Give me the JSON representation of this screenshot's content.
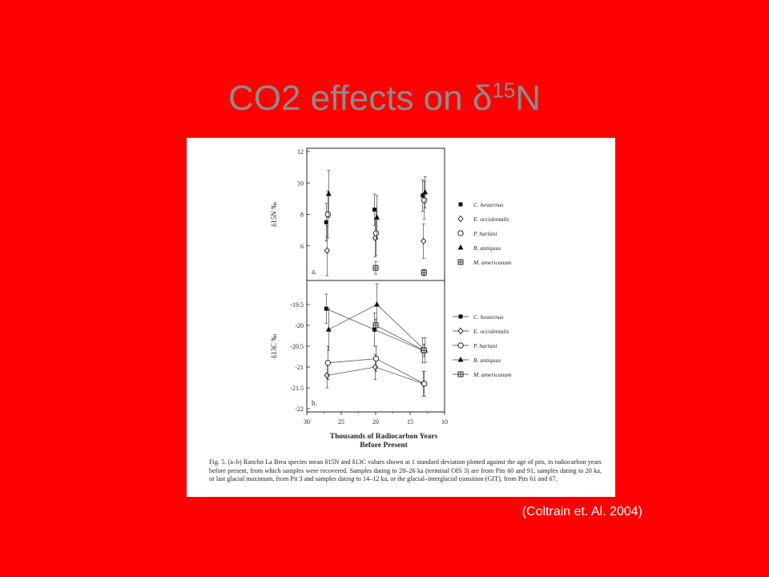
{
  "slide": {
    "title_main": "CO2 effects on δ",
    "title_sup": "15",
    "title_end": "N",
    "citation": "(Coltrain et. Al. 2004)",
    "background": "#ff0000",
    "title_color": "#8c8c8c"
  },
  "figure": {
    "xlabel_line1": "Thousands of Radiocarbon Years",
    "xlabel_line2": "Before Present",
    "caption": "Fig. 5. (a–b) Rancho La Brea species mean δ15N and δ13C values shown at 1 standard deviation plotted against the age of pits, in radiocarbon years before present, from which samples were recovered. Samples dating to 28–26 ka (terminal OIS 3) are from Pits 60 and 91, samples dating to 20 ka, or last glacial maximum, from Pit 3 and samples dating to 14–12 ka, or the glacial–interglacial transition (GIT), from Pits 61 and 67."
  },
  "chart_data": [
    {
      "type": "scatter",
      "panel_label": "a.",
      "ylabel": "δ15N ‰",
      "xlim": [
        30,
        10
      ],
      "ylim": [
        4,
        12
      ],
      "yticks": [
        6,
        8,
        10,
        12
      ],
      "legend_placement": "right",
      "series": [
        {
          "name": "C. hesternus",
          "marker": "square-filled",
          "x": [
            27,
            20,
            13
          ],
          "y": [
            7.5,
            8.3,
            9.2
          ],
          "err": [
            1.2,
            1.0,
            1.0
          ]
        },
        {
          "name": "E. occidentalis",
          "marker": "diamond-open",
          "x": [
            27,
            20,
            13
          ],
          "y": [
            5.7,
            6.5,
            6.3
          ],
          "err": [
            1.6,
            1.2,
            1.1
          ]
        },
        {
          "name": "P. harlani",
          "marker": "circle-open",
          "x": [
            27,
            20,
            13
          ],
          "y": [
            8.0,
            6.8,
            8.9
          ],
          "err": [
            1.5,
            1.4,
            1.2
          ]
        },
        {
          "name": "B. antiquus",
          "marker": "triangle-filled",
          "x": [
            27,
            20,
            13
          ],
          "y": [
            9.3,
            7.8,
            9.4
          ],
          "err": [
            1.5,
            1.4,
            1.0
          ]
        },
        {
          "name": "M. americanum",
          "marker": "square-cross",
          "x": [
            20,
            13
          ],
          "y": [
            4.6,
            4.3
          ],
          "err": [
            0.4,
            0.2
          ]
        }
      ]
    },
    {
      "type": "line",
      "panel_label": "b.",
      "ylabel": "δ13C ‰",
      "xlabel": "Thousands of Radiocarbon Years Before Present",
      "xlim": [
        30,
        10
      ],
      "ylim": [
        -22,
        -19
      ],
      "xticks": [
        30,
        25,
        20,
        15,
        10
      ],
      "yticks": [
        -22,
        -21.5,
        -21,
        -20.5,
        -20,
        -19.5
      ],
      "legend_placement": "right",
      "series": [
        {
          "name": "C. hesternus",
          "marker": "square-filled",
          "x": [
            27,
            20,
            13
          ],
          "y": [
            -19.6,
            -20.1,
            -20.6
          ],
          "err": [
            0.35,
            0.4,
            0.3
          ]
        },
        {
          "name": "E. occidentalis",
          "marker": "diamond-open",
          "x": [
            27,
            20,
            13
          ],
          "y": [
            -21.2,
            -21.0,
            -21.4
          ],
          "err": [
            0.3,
            0.3,
            0.3
          ]
        },
        {
          "name": "P. harlani",
          "marker": "circle-open",
          "x": [
            27,
            20,
            13
          ],
          "y": [
            -20.9,
            -20.8,
            -21.4
          ],
          "err": [
            0.4,
            0.3,
            0.3
          ]
        },
        {
          "name": "B. antiquus",
          "marker": "triangle-filled",
          "x": [
            27,
            20,
            13
          ],
          "y": [
            -20.1,
            -19.5,
            -20.6
          ],
          "err": [
            0.5,
            0.5,
            0.3
          ]
        },
        {
          "name": "M. americanum",
          "marker": "square-cross",
          "x": [
            20,
            13
          ],
          "y": [
            -20.0,
            -20.6
          ],
          "err": [
            0.15,
            0.15
          ]
        }
      ]
    }
  ]
}
